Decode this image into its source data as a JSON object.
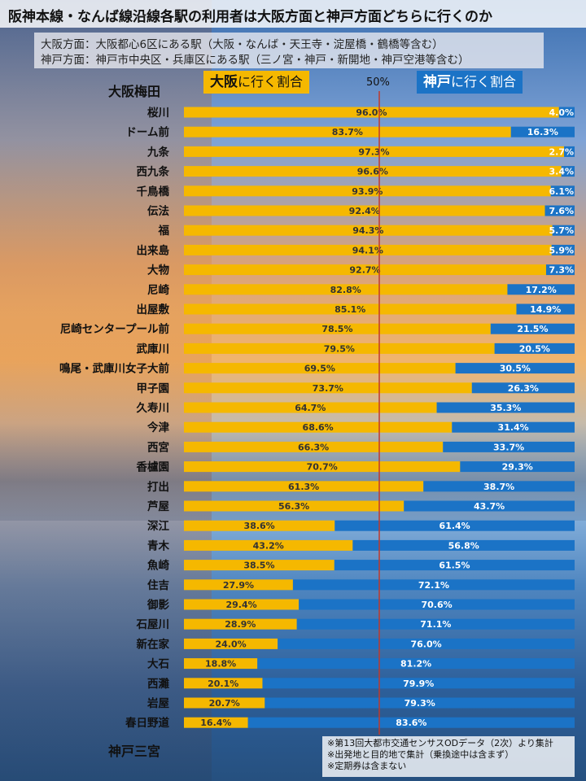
{
  "title": "阪神本線・なんば線沿線各駅の利用者は大阪方面と神戸方面どちらに行くのか",
  "definitions": {
    "osaka": "大阪方面：大阪都心6区にある駅（大阪・なんば・天王寺・淀屋橋・鶴橋等含む）",
    "kobe": "神戸方面：神戸市中央区・兵庫区にある駅（三ノ宮・神戸・新開地・神戸空港等含む）"
  },
  "terminals": {
    "top": "大阪梅田",
    "bottom": "神戸三宮"
  },
  "legend": {
    "osaka_bold": "大阪",
    "osaka_rest": "に行く割合",
    "kobe_bold": "神戸",
    "kobe_rest": "に行く割合",
    "midpoint": "50%"
  },
  "notes": [
    "※第13回大都市交通センサスODデータ（2次）より集計",
    "※出発地と目的地で集計（乗換途中は含まず）",
    "※定期券は含まない"
  ],
  "colors": {
    "osaka": "#f5b800",
    "kobe": "#1b73c6",
    "midline": "#c0392b"
  },
  "chart_data": {
    "type": "bar",
    "orientation": "horizontal",
    "stacked": true,
    "unit": "%",
    "categories": [
      "桜川",
      "ドーム前",
      "九条",
      "西九条",
      "千鳥橋",
      "伝法",
      "福",
      "出来島",
      "大物",
      "尼崎",
      "出屋敷",
      "尼崎センタープール前",
      "武庫川",
      "鳴尾・武庫川女子大前",
      "甲子園",
      "久寿川",
      "今津",
      "西宮",
      "香櫨園",
      "打出",
      "芦屋",
      "深江",
      "青木",
      "魚崎",
      "住吉",
      "御影",
      "石屋川",
      "新在家",
      "大石",
      "西灘",
      "岩屋",
      "春日野道"
    ],
    "series": [
      {
        "name": "大阪に行く割合",
        "values": [
          96.0,
          83.7,
          97.3,
          96.6,
          93.9,
          92.4,
          94.3,
          94.1,
          92.7,
          82.8,
          85.1,
          78.5,
          79.5,
          69.5,
          73.7,
          64.7,
          68.6,
          66.3,
          70.7,
          61.3,
          56.3,
          38.6,
          43.2,
          38.5,
          27.9,
          29.4,
          28.9,
          24.0,
          18.8,
          20.1,
          20.7,
          16.4
        ]
      },
      {
        "name": "神戸に行く割合",
        "values": [
          4.0,
          16.3,
          2.7,
          3.4,
          6.1,
          7.6,
          5.7,
          5.9,
          7.3,
          17.2,
          14.9,
          21.5,
          20.5,
          30.5,
          26.3,
          35.3,
          31.4,
          33.7,
          29.3,
          38.7,
          43.7,
          61.4,
          56.8,
          61.5,
          72.1,
          70.6,
          71.1,
          76.0,
          81.2,
          79.9,
          79.3,
          83.6
        ]
      }
    ],
    "xlim": [
      0,
      100
    ],
    "reference_line": 50
  }
}
